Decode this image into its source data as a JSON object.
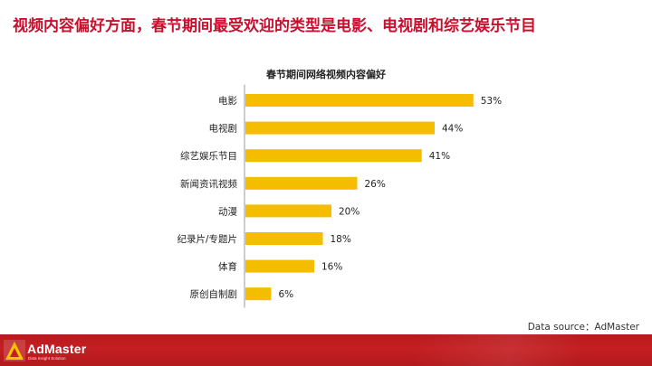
{
  "header": {
    "title": "视频内容偏好方面，春节期间最受欢迎的类型是电影、电视剧和综艺娱乐节目"
  },
  "chart_data": {
    "type": "bar",
    "orientation": "horizontal",
    "title": "春节期间网络视频内容偏好",
    "categories": [
      "电影",
      "电视剧",
      "综艺娱乐节目",
      "新闻资讯视频",
      "动漫",
      "纪录片/专题片",
      "体育",
      "原创自制剧"
    ],
    "values": [
      53,
      44,
      41,
      26,
      20,
      18,
      16,
      6
    ],
    "value_labels": [
      "53%",
      "44%",
      "41%",
      "26%",
      "20%",
      "18%",
      "16%",
      "6%"
    ],
    "unit": "%",
    "bar_color": "#f5bd00",
    "xlim": [
      0,
      60
    ],
    "grid": false,
    "legend": "none"
  },
  "source": {
    "text": "Data source：AdMaster"
  },
  "footer": {
    "brand": "AdMaster",
    "tagline": "Data Insight Solution",
    "bar_color": "#c41f22"
  }
}
